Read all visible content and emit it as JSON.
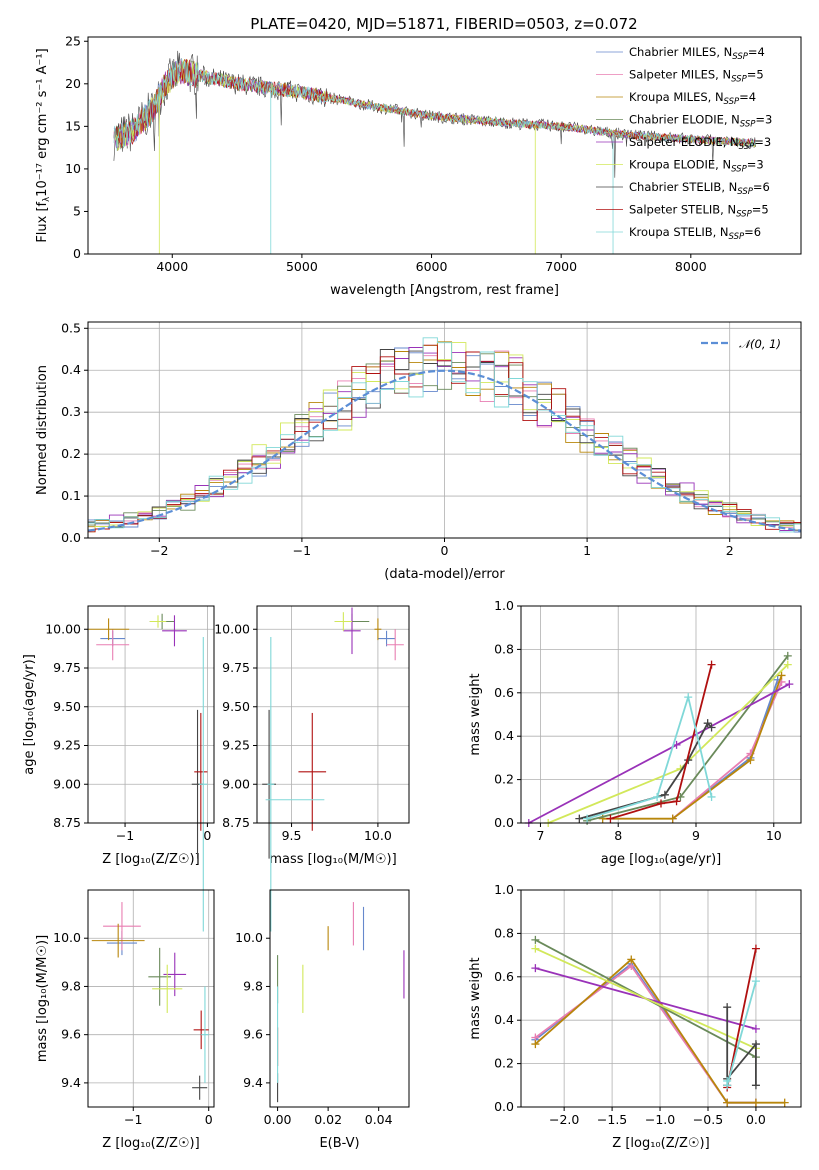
{
  "title": "PLATE=0420, MJD=51871, FIBERID=0503, z=0.072",
  "model_colors": [
    "#6688cc",
    "#e87eb2",
    "#b8860b",
    "#6a8a5a",
    "#9932b8",
    "#d2e85a",
    "#444444",
    "#b01010",
    "#80d8d8"
  ],
  "chart_data": [
    {
      "id": "spectrum",
      "type": "line",
      "xlabel": "wavelength [Angstrom, rest frame]",
      "ylabel": "Flux [f",
      "ylabel_sub": "λ",
      "ylabel_rest": "10⁻¹⁷ erg cm⁻² s⁻¹ A⁻¹]",
      "xlim": [
        3350,
        8850
      ],
      "ylim": [
        0,
        25.5
      ],
      "xticks": [
        4000,
        5000,
        6000,
        7000,
        8000
      ],
      "yticks": [
        0,
        5,
        10,
        15,
        20,
        25
      ],
      "legend_position": "top-right",
      "legend": [
        {
          "pre": "Chabrier MILES, N",
          "sub": "SSP",
          "post": "=4"
        },
        {
          "pre": "Salpeter MILES, N",
          "sub": "SSP",
          "post": "=5"
        },
        {
          "pre": "Kroupa MILES, N",
          "sub": "SSP",
          "post": "=4"
        },
        {
          "pre": "Chabrier ELODIE, N",
          "sub": "SSP",
          "post": "=3"
        },
        {
          "pre": "Salpeter ELODIE, N",
          "sub": "SSP",
          "post": "=3"
        },
        {
          "pre": "Kroupa ELODIE, N",
          "sub": "SSP",
          "post": "=3"
        },
        {
          "pre": "Chabrier STELIB, N",
          "sub": "SSP",
          "post": "=6"
        },
        {
          "pre": "Salpeter STELIB, N",
          "sub": "SSP",
          "post": "=5"
        },
        {
          "pre": "Kroupa STELIB, N",
          "sub": "SSP",
          "post": "=6"
        }
      ],
      "continuum": [
        [
          3550,
          13.5
        ],
        [
          3700,
          14.5
        ],
        [
          3850,
          17
        ],
        [
          3950,
          20
        ],
        [
          4050,
          21.5
        ],
        [
          4200,
          21
        ],
        [
          4500,
          20
        ],
        [
          5000,
          19
        ],
        [
          5500,
          17.5
        ],
        [
          6000,
          16.2
        ],
        [
          6500,
          15.5
        ],
        [
          7000,
          15
        ],
        [
          7500,
          14
        ],
        [
          8000,
          13.5
        ],
        [
          8500,
          13
        ]
      ]
    },
    {
      "id": "residuals",
      "type": "line",
      "xlabel": "(data-model)/error",
      "ylabel": "Normed distribution",
      "xlim": [
        -2.5,
        2.5
      ],
      "ylim": [
        0,
        0.515
      ],
      "xticks": [
        -2,
        -1,
        0,
        1,
        2
      ],
      "yticks": [
        0.0,
        0.1,
        0.2,
        0.3,
        0.4,
        0.5
      ],
      "legend_position": "top-right",
      "reference_label": "𝒩(0, 1)",
      "reference": {
        "mean": 0,
        "sigma": 1
      },
      "grid": true
    },
    {
      "id": "age_vs_Z",
      "type": "scatter",
      "xlabel": "Z [log₁₀(Z/Z☉)]",
      "ylabel": "age  [log₁₀(age/yr)]",
      "xlim": [
        -1.45,
        0.08
      ],
      "ylim": [
        8.75,
        10.15
      ],
      "xticks": [
        -1,
        0
      ],
      "yticks": [
        8.75,
        9.0,
        9.25,
        9.5,
        9.75,
        10.0
      ],
      "grid": true,
      "points": [
        {
          "c": 0,
          "x": -1.15,
          "xe": 0.15,
          "y": 9.94,
          "ye": 0.05
        },
        {
          "c": 1,
          "x": -1.15,
          "xe": 0.2,
          "y": 9.9,
          "ye": 0.1
        },
        {
          "c": 2,
          "x": -1.2,
          "xe": 0.25,
          "y": 10.0,
          "ye": 0.07
        },
        {
          "c": 3,
          "x": -0.55,
          "xe": 0.15,
          "y": 10.05,
          "ye": 0.05
        },
        {
          "c": 4,
          "x": -0.4,
          "xe": 0.15,
          "y": 9.99,
          "ye": 0.1
        },
        {
          "c": 5,
          "x": -0.6,
          "xe": 0.1,
          "y": 10.05,
          "ye": 0.04
        },
        {
          "c": 6,
          "x": -0.12,
          "xe": 0.07,
          "y": 9.0,
          "ye": 0.48
        },
        {
          "c": 7,
          "x": -0.08,
          "xe": 0.08,
          "y": 9.08,
          "ye": 0.38
        },
        {
          "c": 8,
          "x": -0.05,
          "xe": 0.05,
          "y": 9.0,
          "ye": 0.95
        }
      ]
    },
    {
      "id": "age_vs_mass",
      "type": "scatter",
      "xlabel": "mass [log₁₀(M/M☉)]",
      "xlim": [
        9.3,
        10.18
      ],
      "ylim": [
        8.75,
        10.15
      ],
      "xticks": [
        9.5,
        10.0
      ],
      "yticks": [
        8.75,
        9.0,
        9.25,
        9.5,
        9.75,
        10.0
      ],
      "grid": true,
      "points": [
        {
          "c": 0,
          "x": 10.05,
          "xe": 0.05,
          "y": 9.94,
          "ye": 0.05
        },
        {
          "c": 1,
          "x": 10.1,
          "xe": 0.05,
          "y": 9.9,
          "ye": 0.1
        },
        {
          "c": 2,
          "x": 10.0,
          "xe": 0.02,
          "y": 10.0,
          "ye": 0.07
        },
        {
          "c": 3,
          "x": 9.85,
          "xe": 0.1,
          "y": 10.05,
          "ye": 0.05
        },
        {
          "c": 4,
          "x": 9.85,
          "xe": 0.05,
          "y": 9.99,
          "ye": 0.15
        },
        {
          "c": 5,
          "x": 9.8,
          "xe": 0.05,
          "y": 10.05,
          "ye": 0.06
        },
        {
          "c": 6,
          "x": 9.37,
          "xe": 0.04,
          "y": 9.0,
          "ye": 0.48
        },
        {
          "c": 7,
          "x": 9.62,
          "xe": 0.08,
          "y": 9.08,
          "ye": 0.38
        },
        {
          "c": 8,
          "x": 9.38,
          "xe": 0.02,
          "y": 9.0,
          "ye": 0.95
        },
        {
          "c": 8,
          "x": 9.52,
          "xe": 0.17,
          "y": 8.9,
          "ye": 0
        }
      ]
    },
    {
      "id": "weight_vs_age",
      "type": "line",
      "xlabel": "age  [log₁₀(age/yr)]",
      "ylabel": "mass weight",
      "xlim": [
        6.75,
        10.35
      ],
      "ylim": [
        0,
        1.0
      ],
      "xticks": [
        7,
        8,
        9,
        10
      ],
      "yticks": [
        0.0,
        0.2,
        0.4,
        0.6,
        0.8,
        1.0
      ],
      "grid": true,
      "series": [
        {
          "c": 0,
          "x": [
            8.7,
            9.7,
            10.05
          ],
          "y": [
            0.02,
            0.3,
            0.66
          ]
        },
        {
          "c": 1,
          "x": [
            8.7,
            9.7,
            10.1
          ],
          "y": [
            0.02,
            0.32,
            0.65
          ]
        },
        {
          "c": 2,
          "x": [
            7.8,
            8.7,
            9.7,
            10.1
          ],
          "y": [
            0.02,
            0.02,
            0.29,
            0.68
          ]
        },
        {
          "c": 3,
          "x": [
            7.6,
            8.8,
            10.18
          ],
          "y": [
            0.01,
            0.12,
            0.77
          ]
        },
        {
          "c": 4,
          "x": [
            6.85,
            8.75,
            10.2
          ],
          "y": [
            0.0,
            0.36,
            0.64
          ]
        },
        {
          "c": 5,
          "x": [
            7.1,
            8.8,
            10.18
          ],
          "y": [
            0.0,
            0.25,
            0.73
          ]
        },
        {
          "c": 6,
          "x": [
            7.5,
            8.6,
            8.9,
            9.15,
            9.2
          ],
          "y": [
            0.02,
            0.13,
            0.29,
            0.46,
            0.44
          ]
        },
        {
          "c": 7,
          "x": [
            7.9,
            8.55,
            8.75,
            9.2
          ],
          "y": [
            0.02,
            0.09,
            0.1,
            0.73
          ]
        },
        {
          "c": 8,
          "x": [
            7.6,
            8.5,
            8.9,
            9.2
          ],
          "y": [
            0.02,
            0.12,
            0.58,
            0.12
          ]
        }
      ]
    },
    {
      "id": "mass_vs_Z",
      "type": "scatter",
      "xlabel": "Z [log₁₀(Z/Z☉)]",
      "ylabel": "mass [log₁₀(M/M☉)]",
      "xlim": [
        -1.6,
        0.07
      ],
      "ylim": [
        9.3,
        10.2
      ],
      "xticks": [
        -1,
        0
      ],
      "yticks": [
        9.4,
        9.6,
        9.8,
        10.0
      ],
      "grid": true,
      "points": [
        {
          "c": 0,
          "x": -1.15,
          "xe": 0.2,
          "y": 9.98,
          "ye": 0.05
        },
        {
          "c": 1,
          "x": -1.15,
          "xe": 0.25,
          "y": 10.05,
          "ye": 0.1
        },
        {
          "c": 2,
          "x": -1.2,
          "xe": 0.35,
          "y": 9.99,
          "ye": 0.07
        },
        {
          "c": 3,
          "x": -0.65,
          "xe": 0.15,
          "y": 9.84,
          "ye": 0.12
        },
        {
          "c": 4,
          "x": -0.45,
          "xe": 0.15,
          "y": 9.85,
          "ye": 0.09
        },
        {
          "c": 5,
          "x": -0.55,
          "xe": 0.2,
          "y": 9.79,
          "ye": 0.1
        },
        {
          "c": 6,
          "x": -0.12,
          "xe": 0.1,
          "y": 9.38,
          "ye": 0.05
        },
        {
          "c": 7,
          "x": -0.1,
          "xe": 0.1,
          "y": 9.62,
          "ye": 0.08
        },
        {
          "c": 8,
          "x": -0.05,
          "xe": 0.05,
          "y": 9.6,
          "ye": 0.2
        }
      ]
    },
    {
      "id": "mass_vs_EBV",
      "type": "scatter",
      "xlabel": "E(B-V)",
      "xlim": [
        -0.003,
        0.052
      ],
      "ylim": [
        9.3,
        10.2
      ],
      "xticks": [
        0.0,
        0.02,
        0.04
      ],
      "yticks": [
        9.4,
        9.6,
        9.8,
        10.0
      ],
      "grid": false,
      "points": [
        {
          "c": 0,
          "x": 0.034,
          "y": 10.04,
          "ye": 0.09
        },
        {
          "c": 1,
          "x": 0.03,
          "y": 10.06,
          "ye": 0.09
        },
        {
          "c": 2,
          "x": 0.02,
          "y": 10.0,
          "ye": 0.05
        },
        {
          "c": 3,
          "x": 0.0,
          "y": 9.83,
          "ye": 0.1
        },
        {
          "c": 4,
          "x": 0.05,
          "y": 9.85,
          "ye": 0.1
        },
        {
          "c": 5,
          "x": 0.01,
          "y": 9.79,
          "ye": 0.1
        },
        {
          "c": 6,
          "x": 0.0,
          "y": 9.38,
          "ye": 0.06
        },
        {
          "c": 7,
          "x": 0.0,
          "y": 9.55,
          "ye": 0.08
        },
        {
          "c": 8,
          "x": 0.0,
          "y": 9.6,
          "ye": 0.2
        }
      ]
    },
    {
      "id": "weight_vs_Z",
      "type": "line",
      "xlabel": "Z [log₁₀(Z/Z☉)]",
      "ylabel": "mass weight",
      "xlim": [
        -2.45,
        0.47
      ],
      "ylim": [
        0,
        1.0
      ],
      "xticks": [
        -2.0,
        -1.5,
        -1.0,
        -0.5,
        0.0
      ],
      "yticks": [
        0.0,
        0.2,
        0.4,
        0.6,
        0.8,
        1.0
      ],
      "grid": true,
      "series": [
        {
          "c": 0,
          "x": [
            -2.3,
            -1.3,
            -0.3,
            0.0
          ],
          "y": [
            0.31,
            0.66,
            0.02,
            0.02
          ]
        },
        {
          "c": 1,
          "x": [
            -2.3,
            -1.3,
            -0.3,
            0.0
          ],
          "y": [
            0.32,
            0.65,
            0.02,
            0.02
          ]
        },
        {
          "c": 2,
          "x": [
            -2.3,
            -1.3,
            -0.3,
            0.0,
            0.3
          ],
          "y": [
            0.29,
            0.68,
            0.02,
            0.02,
            0.02
          ]
        },
        {
          "c": 3,
          "x": [
            -2.3,
            0.0
          ],
          "y": [
            0.77,
            0.23
          ]
        },
        {
          "c": 4,
          "x": [
            -2.3,
            0.0
          ],
          "y": [
            0.64,
            0.36
          ]
        },
        {
          "c": 5,
          "x": [
            -2.3,
            0.0
          ],
          "y": [
            0.73,
            0.27
          ]
        },
        {
          "c": 6,
          "x": [
            -0.3,
            -0.3,
            0.0,
            0.0
          ],
          "y": [
            0.46,
            0.13,
            0.29,
            0.1
          ]
        },
        {
          "c": 7,
          "x": [
            -0.3,
            -0.3,
            0.0
          ],
          "y": [
            0.1,
            0.09,
            0.73
          ]
        },
        {
          "c": 8,
          "x": [
            -0.3,
            -0.3,
            0.0
          ],
          "y": [
            0.12,
            0.1,
            0.58
          ]
        }
      ]
    }
  ]
}
